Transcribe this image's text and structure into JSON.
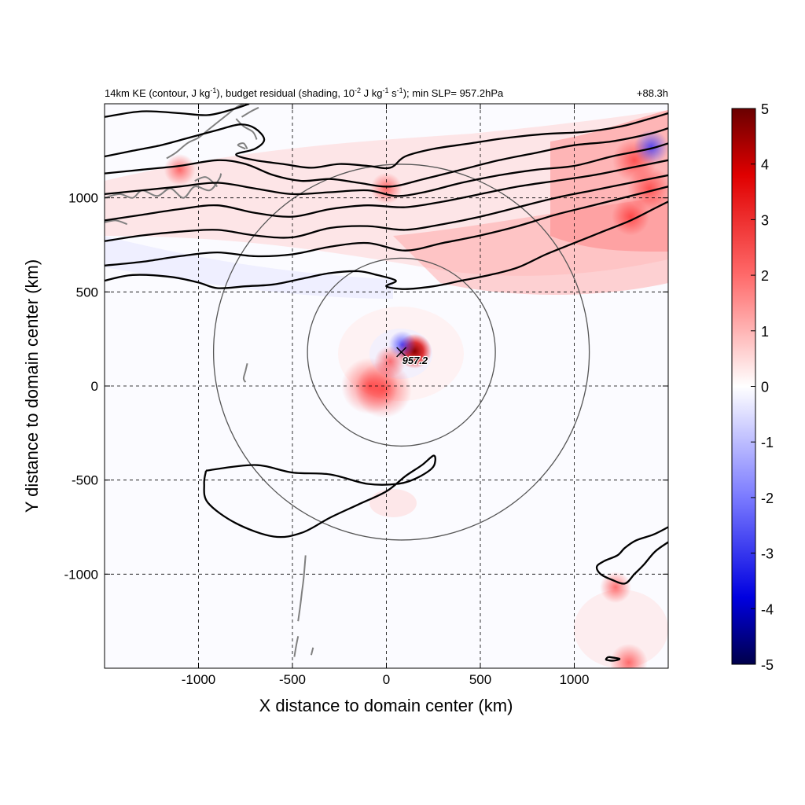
{
  "chart_data": {
    "type": "heatmap",
    "title": {
      "p1": "14km KE (contour, J kg",
      "p1_exp": "-1",
      "p2": "), budget residual (shading, 10",
      "p2_exp": "-2",
      "p3": " J kg",
      "p3_exp": "-1",
      "p4": " s",
      "p4_exp": "-1",
      "p5": "); min SLP= 957.2hPa"
    },
    "time_label": "+88.3h",
    "xlabel": "X distance to domain center (km)",
    "ylabel": "Y distance to domain center (km)",
    "xlim": [
      -1500,
      1500
    ],
    "ylim": [
      -1500,
      1500
    ],
    "xticks": [
      -1000,
      -500,
      0,
      500,
      1000
    ],
    "yticks": [
      -1000,
      -500,
      0,
      500,
      1000
    ],
    "grid": true,
    "colorbar": {
      "min": -5,
      "max": 5,
      "ticks": [
        5,
        4,
        3,
        2,
        1,
        0,
        -1,
        -2,
        -3,
        -4,
        -5
      ],
      "colors": [
        "#00004a",
        "#0000ff",
        "#ffffff",
        "#ff0000",
        "#6a0000"
      ]
    },
    "storm_center": {
      "x": 80,
      "y": 180,
      "label": "957.2"
    },
    "range_circles": [
      {
        "cx": 80,
        "cy": 180,
        "r": 500
      },
      {
        "cx": 80,
        "cy": 180,
        "r": 1000
      }
    ],
    "shading_features": [
      {
        "x": 150,
        "y": 185,
        "value": 5
      },
      {
        "x": 85,
        "y": 220,
        "value": -2.5
      },
      {
        "x": 20,
        "y": 130,
        "value": 1
      },
      {
        "x": -90,
        "y": 0,
        "value": 3
      },
      {
        "x": -15,
        "y": -20,
        "value": 3
      },
      {
        "x": 1320,
        "y": 1200,
        "value": 2
      },
      {
        "x": 1400,
        "y": 1050,
        "value": 2
      },
      {
        "x": 1300,
        "y": 900,
        "value": 1.5
      },
      {
        "x": -1100,
        "y": 1150,
        "value": 1
      },
      {
        "x": 0,
        "y": 1050,
        "value": 1
      },
      {
        "x": 1410,
        "y": 1270,
        "value": -4
      },
      {
        "x": 1290,
        "y": -1470,
        "value": 1.5
      },
      {
        "x": 1220,
        "y": -1070,
        "value": 1
      }
    ],
    "ke_contours": [
      [
        [
          -1500,
          1430
        ],
        [
          -1300,
          1460
        ],
        [
          -1100,
          1450
        ],
        [
          -950,
          1440
        ],
        [
          -820,
          1470
        ],
        [
          -730,
          1500
        ]
      ],
      [
        [
          -1500,
          1220
        ],
        [
          -1350,
          1250
        ],
        [
          -1200,
          1280
        ],
        [
          -1050,
          1320
        ],
        [
          -900,
          1360
        ],
        [
          -780,
          1390
        ],
        [
          -700,
          1370
        ],
        [
          -650,
          1310
        ],
        [
          -700,
          1260
        ],
        [
          -800,
          1230
        ],
        [
          -700,
          1200
        ],
        [
          -550,
          1180
        ],
        [
          -400,
          1160
        ],
        [
          -250,
          1180
        ],
        [
          -100,
          1170
        ],
        [
          20,
          1160
        ],
        [
          100,
          1220
        ],
        [
          250,
          1260
        ],
        [
          450,
          1290
        ],
        [
          650,
          1320
        ],
        [
          850,
          1340
        ],
        [
          1050,
          1350
        ],
        [
          1250,
          1380
        ],
        [
          1400,
          1420
        ],
        [
          1500,
          1450
        ]
      ],
      [
        [
          -1500,
          1130
        ],
        [
          -1300,
          1150
        ],
        [
          -1100,
          1170
        ],
        [
          -900,
          1200
        ],
        [
          -750,
          1180
        ],
        [
          -600,
          1120
        ],
        [
          -450,
          1090
        ],
        [
          -300,
          1100
        ],
        [
          -150,
          1080
        ],
        [
          20,
          1060
        ],
        [
          200,
          1100
        ],
        [
          400,
          1150
        ],
        [
          600,
          1200
        ],
        [
          800,
          1240
        ],
        [
          1000,
          1280
        ],
        [
          1200,
          1300
        ],
        [
          1400,
          1340
        ],
        [
          1500,
          1370
        ]
      ],
      [
        [
          -1500,
          1020
        ],
        [
          -1300,
          1040
        ],
        [
          -1100,
          1060
        ],
        [
          -900,
          1080
        ],
        [
          -700,
          1050
        ],
        [
          -500,
          1020
        ],
        [
          -300,
          1030
        ],
        [
          -100,
          1040
        ],
        [
          50,
          1010
        ],
        [
          200,
          1030
        ],
        [
          400,
          1080
        ],
        [
          600,
          1120
        ],
        [
          800,
          1150
        ],
        [
          1000,
          1170
        ],
        [
          1200,
          1220
        ],
        [
          1400,
          1260
        ],
        [
          1500,
          1290
        ]
      ],
      [
        [
          -1500,
          880
        ],
        [
          -1300,
          910
        ],
        [
          -1100,
          940
        ],
        [
          -900,
          960
        ],
        [
          -700,
          920
        ],
        [
          -500,
          900
        ],
        [
          -300,
          940
        ],
        [
          -100,
          960
        ],
        [
          100,
          950
        ],
        [
          300,
          980
        ],
        [
          500,
          1020
        ],
        [
          700,
          1060
        ],
        [
          900,
          1090
        ],
        [
          1100,
          1120
        ],
        [
          1300,
          1160
        ],
        [
          1500,
          1200
        ]
      ],
      [
        [
          -1500,
          770
        ],
        [
          -1300,
          800
        ],
        [
          -1100,
          820
        ],
        [
          -900,
          830
        ],
        [
          -700,
          800
        ],
        [
          -500,
          790
        ],
        [
          -300,
          840
        ],
        [
          -100,
          850
        ],
        [
          100,
          830
        ],
        [
          300,
          860
        ],
        [
          500,
          900
        ],
        [
          700,
          950
        ],
        [
          900,
          1000
        ],
        [
          1100,
          1040
        ],
        [
          1300,
          1080
        ],
        [
          1500,
          1120
        ]
      ],
      [
        [
          -1500,
          640
        ],
        [
          -1300,
          660
        ],
        [
          -1100,
          690
        ],
        [
          -900,
          710
        ],
        [
          -700,
          690
        ],
        [
          -500,
          700
        ],
        [
          -300,
          740
        ],
        [
          -100,
          760
        ],
        [
          100,
          720
        ],
        [
          300,
          760
        ],
        [
          500,
          800
        ],
        [
          700,
          850
        ],
        [
          900,
          910
        ],
        [
          1100,
          960
        ],
        [
          1300,
          1010
        ],
        [
          1500,
          1060
        ]
      ],
      [
        [
          -1500,
          560
        ],
        [
          -1350,
          590
        ],
        [
          -1150,
          580
        ],
        [
          -1000,
          550
        ],
        [
          -900,
          520
        ],
        [
          -750,
          530
        ],
        [
          -600,
          540
        ],
        [
          -450,
          570
        ],
        [
          -300,
          600
        ],
        [
          -150,
          610
        ],
        [
          -50,
          590
        ],
        [
          50,
          560
        ],
        [
          0,
          530
        ],
        [
          100,
          515
        ],
        [
          250,
          530
        ],
        [
          400,
          560
        ],
        [
          550,
          590
        ],
        [
          700,
          630
        ],
        [
          850,
          700
        ],
        [
          1000,
          760
        ],
        [
          1150,
          820
        ],
        [
          1300,
          880
        ],
        [
          1420,
          940
        ],
        [
          1500,
          980
        ]
      ],
      [
        [
          -960,
          -450
        ],
        [
          -700,
          -420
        ],
        [
          -500,
          -460
        ],
        [
          -300,
          -470
        ],
        [
          -100,
          -520
        ],
        [
          60,
          -520
        ],
        [
          160,
          -490
        ],
        [
          240,
          -440
        ],
        [
          260,
          -400
        ],
        [
          250,
          -370
        ],
        [
          190,
          -420
        ],
        [
          100,
          -480
        ],
        [
          0,
          -560
        ],
        [
          -150,
          -630
        ],
        [
          -300,
          -700
        ],
        [
          -450,
          -780
        ],
        [
          -600,
          -800
        ],
        [
          -800,
          -730
        ],
        [
          -950,
          -620
        ],
        [
          -970,
          -520
        ],
        [
          -960,
          -450
        ]
      ],
      [
        [
          1500,
          -750
        ],
        [
          1420,
          -790
        ],
        [
          1330,
          -820
        ],
        [
          1270,
          -860
        ],
        [
          1230,
          -900
        ],
        [
          1160,
          -930
        ],
        [
          1120,
          -960
        ],
        [
          1140,
          -1000
        ],
        [
          1200,
          -1030
        ],
        [
          1270,
          -1050
        ],
        [
          1320,
          -1000
        ],
        [
          1370,
          -950
        ],
        [
          1430,
          -880
        ],
        [
          1500,
          -830
        ]
      ],
      [
        [
          1180,
          -1440
        ],
        [
          1240,
          -1450
        ],
        [
          1210,
          -1460
        ],
        [
          1170,
          -1455
        ],
        [
          1180,
          -1440
        ]
      ]
    ],
    "coastlines": [
      [
        [
          -1500,
          1000
        ],
        [
          -1420,
          1020
        ],
        [
          -1350,
          1000
        ],
        [
          -1300,
          1040
        ],
        [
          -1220,
          1010
        ],
        [
          -1150,
          1050
        ],
        [
          -1080,
          1000
        ],
        [
          -1020,
          1060
        ],
        [
          -940,
          1040
        ],
        [
          -890,
          1100
        ],
        [
          -880,
          1130
        ]
      ],
      [
        [
          -1500,
          870
        ],
        [
          -1440,
          880
        ],
        [
          -1380,
          860
        ]
      ],
      [
        [
          -1170,
          1210
        ],
        [
          -1120,
          1240
        ],
        [
          -1060,
          1290
        ],
        [
          -1000,
          1320
        ],
        [
          -950,
          1360
        ],
        [
          -900,
          1400
        ],
        [
          -850,
          1440
        ],
        [
          -800,
          1480
        ],
        [
          -760,
          1500
        ]
      ],
      [
        [
          -690,
          1310
        ],
        [
          -710,
          1350
        ],
        [
          -760,
          1380
        ],
        [
          -800,
          1420
        ]
      ],
      [
        [
          -770,
          1430
        ],
        [
          -720,
          1460
        ],
        [
          -680,
          1480
        ]
      ],
      [
        [
          -740,
          1260
        ],
        [
          -760,
          1290
        ],
        [
          -790,
          1280
        ],
        [
          -750,
          1260
        ]
      ],
      [
        [
          -1020,
          1090
        ],
        [
          -960,
          1110
        ],
        [
          -900,
          1060
        ]
      ],
      [
        [
          -740,
          120
        ],
        [
          -750,
          80
        ],
        [
          -760,
          40
        ],
        [
          -750,
          20
        ]
      ],
      [
        [
          -430,
          -900
        ],
        [
          -440,
          -1020
        ],
        [
          -450,
          -1100
        ],
        [
          -460,
          -1180
        ],
        [
          -470,
          -1250
        ]
      ],
      [
        [
          -470,
          -1330
        ],
        [
          -480,
          -1380
        ],
        [
          -490,
          -1440
        ]
      ],
      [
        [
          -390,
          -1390
        ],
        [
          -400,
          -1430
        ]
      ]
    ]
  }
}
